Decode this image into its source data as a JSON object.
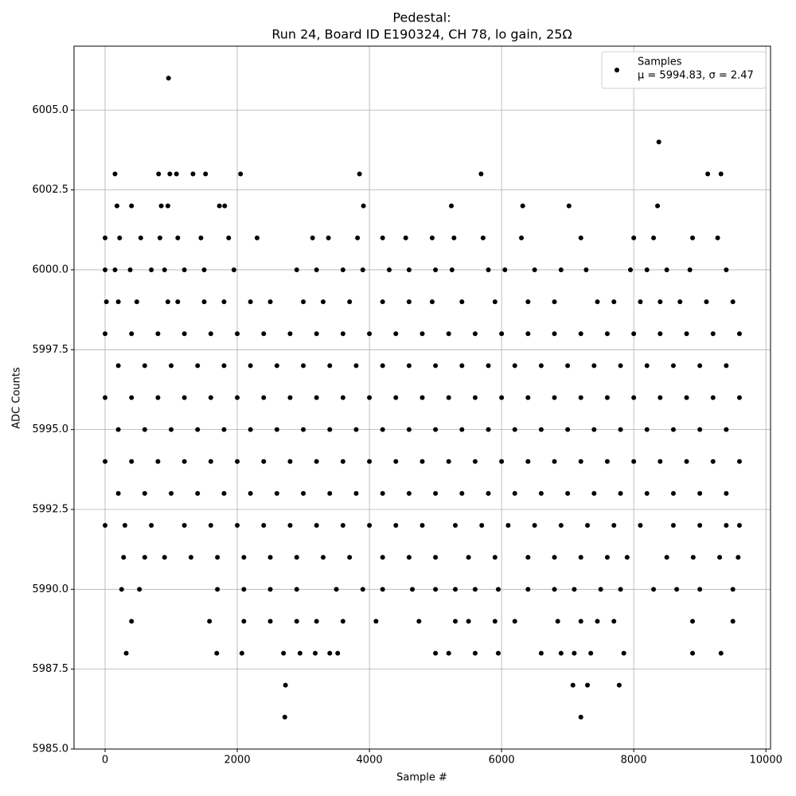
{
  "chart_data": {
    "type": "scatter",
    "title": "Pedestal:",
    "subtitle": "Run 24, Board ID E190324, CH 78, lo gain, 25Ω",
    "x_label": "Sample #",
    "y_label": "ADC Counts",
    "legend_text": "μ = 5994.83, σ = 2.47",
    "legend_position": "upper right",
    "grid": true,
    "xlim": [
      -470,
      10070
    ],
    "ylim": [
      5985,
      6007
    ],
    "xticks": [
      0,
      2000,
      4000,
      6000,
      8000,
      10000
    ],
    "yticks": [
      {
        "value": 5985,
        "label": "5985.0"
      },
      {
        "value": 5987.5,
        "label": "5987.5"
      },
      {
        "value": 5990,
        "label": "5990.0"
      },
      {
        "value": 5992.5,
        "label": "5992.5"
      },
      {
        "value": 5995,
        "label": "5995.0"
      },
      {
        "value": 5997.5,
        "label": "5997.5"
      },
      {
        "value": 6000,
        "label": "6000.0"
      },
      {
        "value": 6002.5,
        "label": "6002.5"
      },
      {
        "value": 6005,
        "label": "6005.0"
      }
    ],
    "series": [
      {
        "name": "Samples",
        "color": "#000000",
        "x": [
          960,
          8380,
          150,
          810,
          980,
          1080,
          1330,
          1520,
          2050,
          3850,
          5690,
          9120,
          9320,
          180,
          400,
          850,
          950,
          1730,
          1810,
          3910,
          5240,
          6320,
          7020,
          8360,
          0,
          220,
          540,
          830,
          1100,
          1450,
          1870,
          2300,
          3140,
          3380,
          3820,
          4200,
          4550,
          4950,
          5280,
          5720,
          6300,
          7200,
          8000,
          8300,
          8890,
          9270,
          0,
          150,
          380,
          700,
          900,
          1200,
          1500,
          1950,
          2900,
          3200,
          3600,
          3900,
          4300,
          4600,
          5000,
          5250,
          5800,
          6050,
          6500,
          6900,
          7280,
          7950,
          8200,
          8500,
          8850,
          9400,
          20,
          200,
          480,
          950,
          1100,
          1500,
          1800,
          2200,
          2500,
          3000,
          3300,
          3700,
          4200,
          4600,
          4950,
          5400,
          5900,
          6400,
          6800,
          7450,
          7700,
          8100,
          8400,
          8700,
          9100,
          9500,
          0,
          400,
          800,
          1200,
          1600,
          2000,
          2400,
          2800,
          3200,
          3600,
          4000,
          4400,
          4800,
          5200,
          5600,
          6000,
          6400,
          6800,
          7200,
          7600,
          8000,
          8400,
          8800,
          9200,
          9600,
          200,
          600,
          1000,
          1400,
          1800,
          2200,
          2600,
          3000,
          3400,
          3800,
          4200,
          4600,
          5000,
          5400,
          5800,
          6200,
          6600,
          7000,
          7400,
          7800,
          8200,
          8600,
          9000,
          9400,
          0,
          400,
          800,
          1200,
          1600,
          2000,
          2400,
          2800,
          3200,
          3600,
          4000,
          4400,
          4800,
          5200,
          5600,
          6000,
          6400,
          6800,
          7200,
          7600,
          8000,
          8400,
          8800,
          9200,
          9600,
          200,
          600,
          1000,
          1400,
          1800,
          2200,
          2600,
          3000,
          3400,
          3800,
          4200,
          4600,
          5000,
          5400,
          5800,
          6200,
          6600,
          7000,
          7400,
          7800,
          8200,
          8600,
          9000,
          9400,
          0,
          400,
          800,
          1200,
          1600,
          2000,
          2400,
          2800,
          3200,
          3600,
          4000,
          4400,
          4800,
          5200,
          5600,
          6000,
          6400,
          6800,
          7200,
          7600,
          8000,
          8400,
          8800,
          9200,
          9600,
          200,
          600,
          1000,
          1400,
          1800,
          2200,
          2600,
          3000,
          3400,
          3800,
          4200,
          4600,
          5000,
          5400,
          5800,
          6200,
          6600,
          7000,
          7400,
          7800,
          8200,
          8600,
          9000,
          9400,
          0,
          300,
          700,
          1200,
          1600,
          2000,
          2400,
          2800,
          3200,
          3600,
          4000,
          4400,
          4800,
          5300,
          5700,
          6100,
          6500,
          6900,
          7300,
          7700,
          8100,
          8600,
          9000,
          9400,
          9600,
          280,
          600,
          900,
          1300,
          1700,
          2100,
          2500,
          2900,
          3300,
          3700,
          4200,
          4600,
          5000,
          5500,
          5900,
          6400,
          6800,
          7200,
          7600,
          7900,
          8500,
          8900,
          9300,
          9580,
          250,
          520,
          1700,
          2100,
          2500,
          2900,
          3500,
          3900,
          4200,
          4650,
          5000,
          5300,
          5600,
          5950,
          6400,
          6800,
          7100,
          7500,
          7800,
          8300,
          8650,
          9000,
          9500,
          400,
          1580,
          2100,
          2500,
          2900,
          3200,
          3600,
          4100,
          4750,
          5300,
          5500,
          5900,
          6200,
          6850,
          7200,
          7450,
          7700,
          8890,
          9500,
          320,
          1690,
          2070,
          2700,
          2950,
          3180,
          3400,
          3520,
          5000,
          5200,
          5600,
          5950,
          6600,
          6900,
          7100,
          7350,
          7850,
          8890,
          9320,
          2730,
          7080,
          7300,
          7780,
          2720,
          7200
        ],
        "values": [
          6006,
          6004,
          6003,
          6003,
          6003,
          6003,
          6003,
          6003,
          6003,
          6003,
          6003,
          6003,
          6003,
          6002,
          6002,
          6002,
          6002,
          6002,
          6002,
          6002,
          6002,
          6002,
          6002,
          6002,
          6001,
          6001,
          6001,
          6001,
          6001,
          6001,
          6001,
          6001,
          6001,
          6001,
          6001,
          6001,
          6001,
          6001,
          6001,
          6001,
          6001,
          6001,
          6001,
          6001,
          6001,
          6001,
          6000,
          6000,
          6000,
          6000,
          6000,
          6000,
          6000,
          6000,
          6000,
          6000,
          6000,
          6000,
          6000,
          6000,
          6000,
          6000,
          6000,
          6000,
          6000,
          6000,
          6000,
          6000,
          6000,
          6000,
          6000,
          6000,
          5999,
          5999,
          5999,
          5999,
          5999,
          5999,
          5999,
          5999,
          5999,
          5999,
          5999,
          5999,
          5999,
          5999,
          5999,
          5999,
          5999,
          5999,
          5999,
          5999,
          5999,
          5999,
          5999,
          5999,
          5999,
          5999,
          5998,
          5998,
          5998,
          5998,
          5998,
          5998,
          5998,
          5998,
          5998,
          5998,
          5998,
          5998,
          5998,
          5998,
          5998,
          5998,
          5998,
          5998,
          5998,
          5998,
          5998,
          5998,
          5998,
          5998,
          5998,
          5997,
          5997,
          5997,
          5997,
          5997,
          5997,
          5997,
          5997,
          5997,
          5997,
          5997,
          5997,
          5997,
          5997,
          5997,
          5997,
          5997,
          5997,
          5997,
          5997,
          5997,
          5997,
          5997,
          5997,
          5996,
          5996,
          5996,
          5996,
          5996,
          5996,
          5996,
          5996,
          5996,
          5996,
          5996,
          5996,
          5996,
          5996,
          5996,
          5996,
          5996,
          5996,
          5996,
          5996,
          5996,
          5996,
          5996,
          5996,
          5996,
          5995,
          5995,
          5995,
          5995,
          5995,
          5995,
          5995,
          5995,
          5995,
          5995,
          5995,
          5995,
          5995,
          5995,
          5995,
          5995,
          5995,
          5995,
          5995,
          5995,
          5995,
          5995,
          5995,
          5995,
          5994,
          5994,
          5994,
          5994,
          5994,
          5994,
          5994,
          5994,
          5994,
          5994,
          5994,
          5994,
          5994,
          5994,
          5994,
          5994,
          5994,
          5994,
          5994,
          5994,
          5994,
          5994,
          5994,
          5994,
          5994,
          5993,
          5993,
          5993,
          5993,
          5993,
          5993,
          5993,
          5993,
          5993,
          5993,
          5993,
          5993,
          5993,
          5993,
          5993,
          5993,
          5993,
          5993,
          5993,
          5993,
          5993,
          5993,
          5993,
          5993,
          5992,
          5992,
          5992,
          5992,
          5992,
          5992,
          5992,
          5992,
          5992,
          5992,
          5992,
          5992,
          5992,
          5992,
          5992,
          5992,
          5992,
          5992,
          5992,
          5992,
          5992,
          5992,
          5992,
          5992,
          5992,
          5991,
          5991,
          5991,
          5991,
          5991,
          5991,
          5991,
          5991,
          5991,
          5991,
          5991,
          5991,
          5991,
          5991,
          5991,
          5991,
          5991,
          5991,
          5991,
          5991,
          5991,
          5991,
          5991,
          5991,
          5990,
          5990,
          5990,
          5990,
          5990,
          5990,
          5990,
          5990,
          5990,
          5990,
          5990,
          5990,
          5990,
          5990,
          5990,
          5990,
          5990,
          5990,
          5990,
          5990,
          5990,
          5990,
          5990,
          5989,
          5989,
          5989,
          5989,
          5989,
          5989,
          5989,
          5989,
          5989,
          5989,
          5989,
          5989,
          5989,
          5989,
          5989,
          5989,
          5989,
          5989,
          5989,
          5988,
          5988,
          5988,
          5988,
          5988,
          5988,
          5988,
          5988,
          5988,
          5988,
          5988,
          5988,
          5988,
          5988,
          5988,
          5988,
          5988,
          5988,
          5988,
          5987,
          5987,
          5987,
          5987,
          5986,
          5986
        ]
      }
    ]
  }
}
